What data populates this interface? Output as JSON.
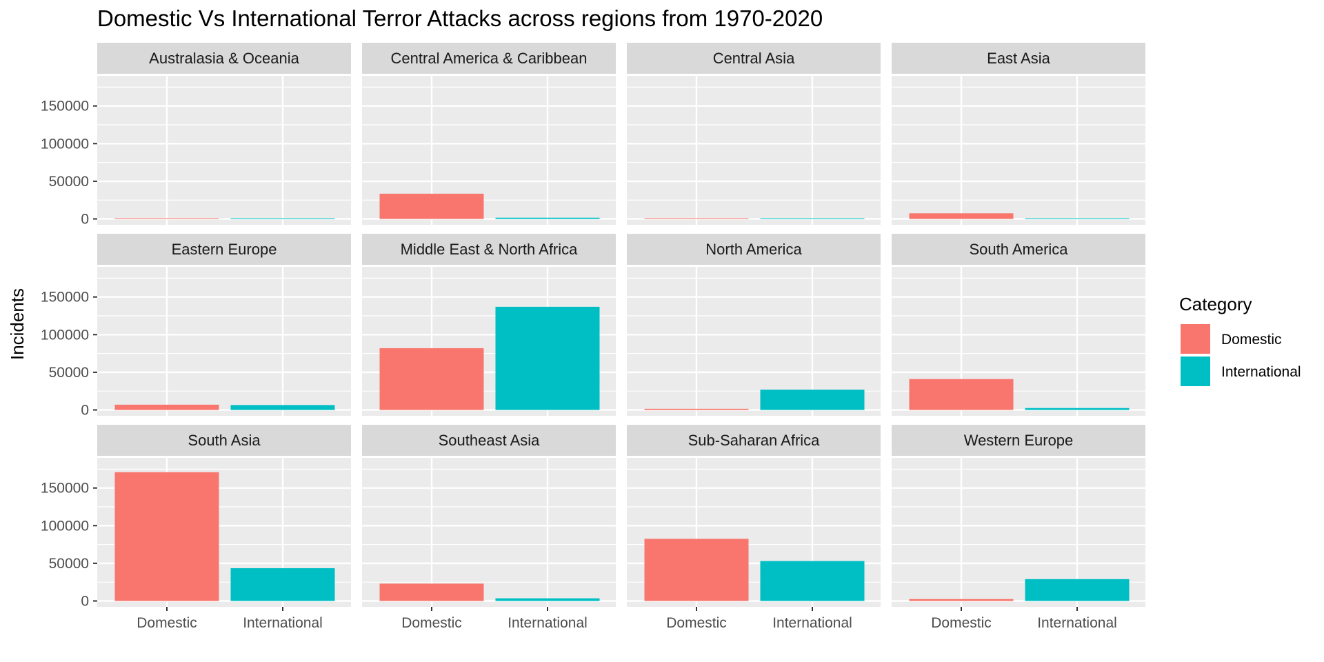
{
  "chart_data": {
    "type": "bar",
    "title": "Domestic Vs International Terror Attacks across regions from 1970-2020",
    "ylabel": "Incidents",
    "xlabel": "",
    "categories": [
      "Domestic",
      "International"
    ],
    "y_ticks": [
      "0",
      "50000",
      "100000",
      "150000"
    ],
    "ylim": [
      0,
      170000
    ],
    "grid": true,
    "legend": {
      "title": "Category",
      "position": "right",
      "entries": [
        "Domestic",
        "International"
      ]
    },
    "colors": {
      "Domestic": "#F8766D",
      "International": "#00BFC4"
    },
    "facets": [
      {
        "region": "Australasia & Oceania",
        "values": [
          250,
          150
        ]
      },
      {
        "region": "Central America & Caribbean",
        "values": [
          33500,
          1600
        ]
      },
      {
        "region": "Central Asia",
        "values": [
          800,
          700
        ]
      },
      {
        "region": "East Asia",
        "values": [
          7500,
          900
        ]
      },
      {
        "region": "Eastern Europe",
        "values": [
          7000,
          6500
        ]
      },
      {
        "region": "Middle East & North Africa",
        "values": [
          82000,
          137000
        ]
      },
      {
        "region": "North America",
        "values": [
          1500,
          27000
        ]
      },
      {
        "region": "South America",
        "values": [
          41000,
          2500
        ]
      },
      {
        "region": "South Asia",
        "values": [
          171000,
          43500
        ]
      },
      {
        "region": "Southeast Asia",
        "values": [
          23000,
          3500
        ]
      },
      {
        "region": "Sub-Saharan Africa",
        "values": [
          82500,
          53000
        ]
      },
      {
        "region": "Western Europe",
        "values": [
          2500,
          29000
        ]
      }
    ]
  }
}
